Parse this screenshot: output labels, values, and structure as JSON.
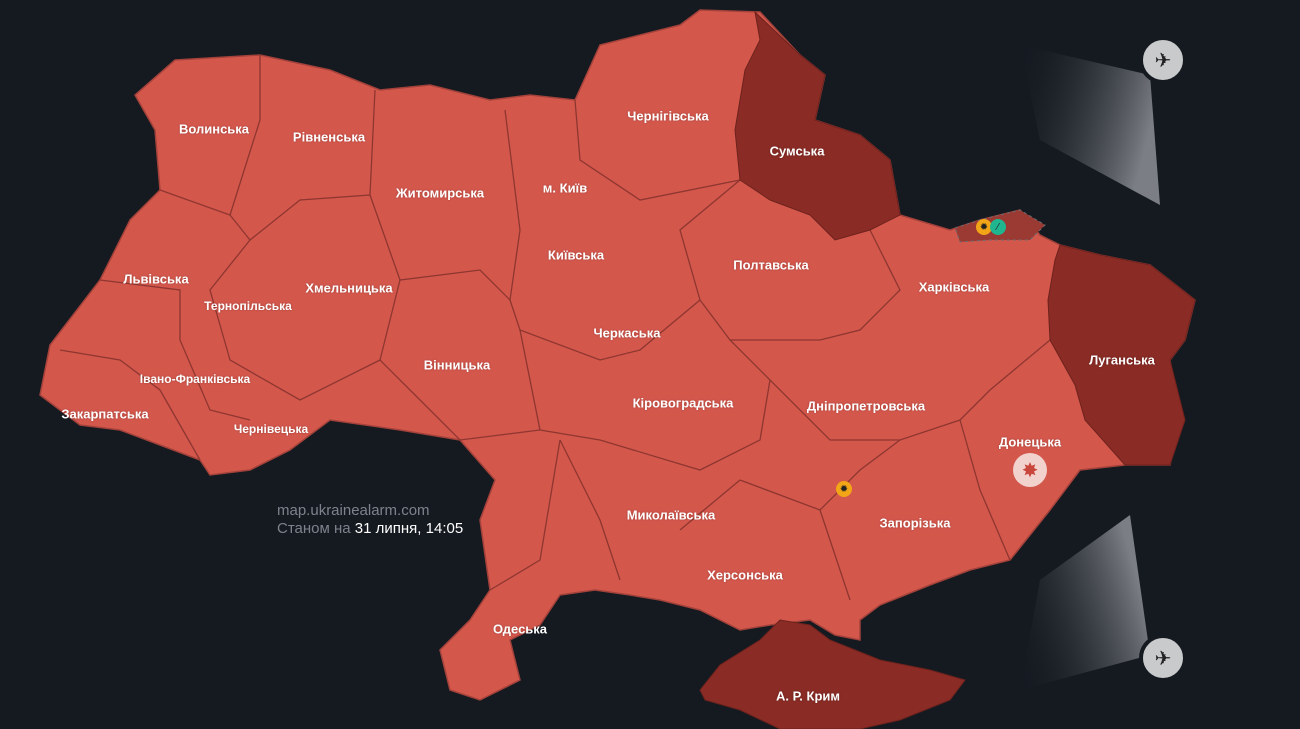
{
  "colors": {
    "background": "#151a21",
    "alert": "#d4574c",
    "alert_dark": "#8a2b25",
    "border": "#9a3a33",
    "watermark": "#7d838c"
  },
  "regions": [
    {
      "name": "Волинська",
      "alert": true
    },
    {
      "name": "Рівненська",
      "alert": true
    },
    {
      "name": "Житомирська",
      "alert": true
    },
    {
      "name": "м. Київ",
      "alert": true
    },
    {
      "name": "Чернігівська",
      "alert": true
    },
    {
      "name": "Сумська",
      "alert": true,
      "highlight": "dark"
    },
    {
      "name": "Львівська",
      "alert": true
    },
    {
      "name": "Тернопільська",
      "alert": true
    },
    {
      "name": "Хмельницька",
      "alert": true
    },
    {
      "name": "Київська",
      "alert": true
    },
    {
      "name": "Полтавська",
      "alert": true
    },
    {
      "name": "Харківська",
      "alert": true
    },
    {
      "name": "Луганська",
      "alert": true,
      "highlight": "dark"
    },
    {
      "name": "Івано-Франківська",
      "alert": true
    },
    {
      "name": "Вінницька",
      "alert": true
    },
    {
      "name": "Черкаська",
      "alert": true
    },
    {
      "name": "Закарпатська",
      "alert": true
    },
    {
      "name": "Чернівецька",
      "alert": true
    },
    {
      "name": "Кіровоградська",
      "alert": true
    },
    {
      "name": "Дніпропетровська",
      "alert": true
    },
    {
      "name": "Донецька",
      "alert": true
    },
    {
      "name": "Миколаївська",
      "alert": true
    },
    {
      "name": "Запорізька",
      "alert": true
    },
    {
      "name": "Херсонська",
      "alert": true
    },
    {
      "name": "Одеська",
      "alert": true
    },
    {
      "name": "А. Р. Крим",
      "alert": true,
      "highlight": "dark"
    }
  ],
  "markers": [
    {
      "icon": "artillery-icon",
      "color": "#f2a516"
    },
    {
      "icon": "rifle-icon",
      "color": "#1fb58f"
    },
    {
      "icon": "artillery-icon",
      "color": "#f2a516"
    },
    {
      "icon": "explosion-icon",
      "color": "#f1d2cd"
    }
  ],
  "aircraft": [
    {
      "icon": "fighter-jet-icon"
    },
    {
      "icon": "fighter-jet-icon"
    }
  ],
  "watermark": {
    "site": "map.ukrainealarm.com",
    "as_of_prefix": "Станом на",
    "as_of_value": "31 липня, 14:05"
  }
}
